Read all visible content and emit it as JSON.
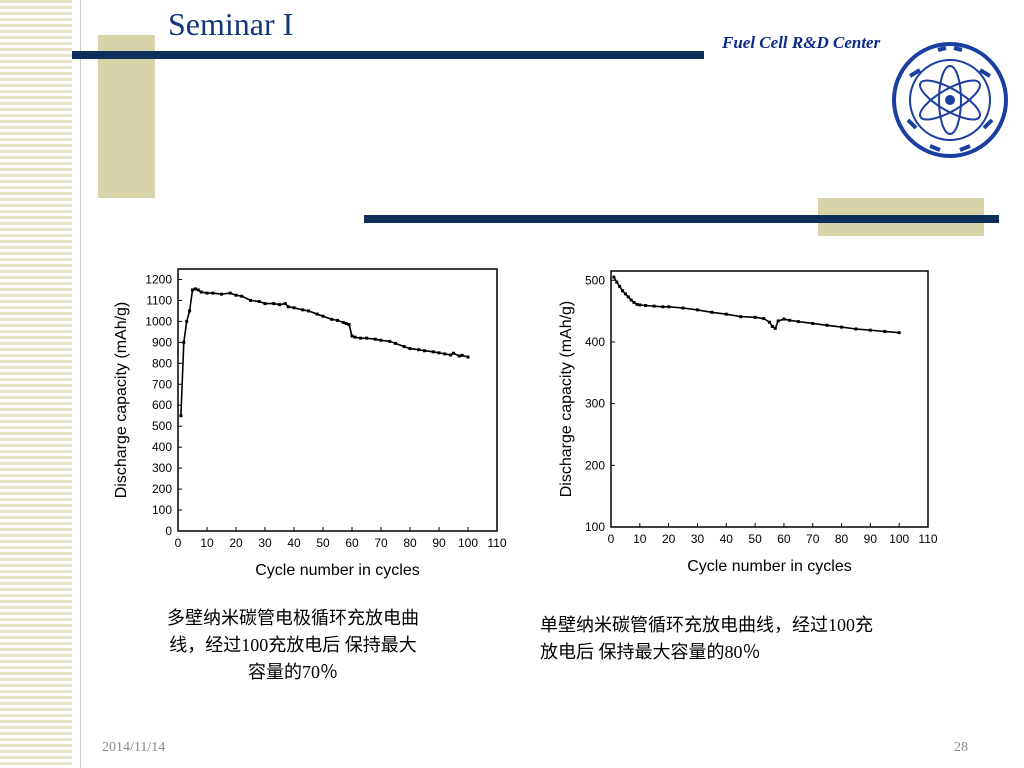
{
  "slide": {
    "title": "Seminar I",
    "center_name": "Fuel Cell R&D Center",
    "date": "2014/11/14",
    "page_number": "28"
  },
  "captions": {
    "left_lines": [
      "多壁纳米碳管电极循环充放电曲",
      "线，经过100充放电后  保持最大",
      "容量的70％"
    ],
    "right_lines": [
      "单壁纳米碳管循环充放电曲线，经过100充",
      "放电后 保持最大容量的80％"
    ]
  },
  "chart_data": [
    {
      "type": "line",
      "xlabel": "Cycle number in cycles",
      "ylabel": "Discharge capacity (mAh/g)",
      "xlim": [
        0,
        110
      ],
      "ylim": [
        0,
        1250
      ],
      "xticks": [
        0,
        10,
        20,
        30,
        40,
        50,
        60,
        70,
        80,
        90,
        100,
        110
      ],
      "yticks": [
        0,
        100,
        200,
        300,
        400,
        500,
        600,
        700,
        800,
        900,
        1000,
        1100,
        1200
      ],
      "series": [
        {
          "x": [
            1,
            2,
            3,
            4,
            5,
            6,
            7,
            8,
            10,
            12,
            15,
            18,
            20,
            22,
            25,
            28,
            30,
            33,
            35,
            37,
            38,
            40,
            43,
            45,
            48,
            50,
            53,
            55,
            57,
            58,
            59,
            60,
            61,
            63,
            65,
            68,
            70,
            73,
            75,
            78,
            80,
            83,
            85,
            88,
            90,
            92,
            94,
            95,
            97,
            98,
            100
          ],
          "y": [
            550,
            900,
            1000,
            1050,
            1150,
            1155,
            1150,
            1140,
            1135,
            1135,
            1130,
            1135,
            1125,
            1120,
            1100,
            1095,
            1085,
            1085,
            1080,
            1085,
            1070,
            1065,
            1055,
            1050,
            1035,
            1025,
            1010,
            1005,
            995,
            990,
            985,
            930,
            925,
            920,
            920,
            915,
            910,
            905,
            895,
            880,
            870,
            865,
            860,
            855,
            850,
            845,
            840,
            848,
            835,
            838,
            830
          ]
        }
      ]
    },
    {
      "type": "line",
      "xlabel": "Cycle number in cycles",
      "ylabel": "Discharge capacity (mAh/g)",
      "xlim": [
        0,
        110
      ],
      "ylim": [
        100,
        515
      ],
      "xticks": [
        0,
        10,
        20,
        30,
        40,
        50,
        60,
        70,
        80,
        90,
        100,
        110
      ],
      "yticks": [
        100,
        200,
        300,
        400,
        500
      ],
      "series": [
        {
          "x": [
            1,
            2,
            3,
            4,
            5,
            6,
            7,
            8,
            9,
            10,
            12,
            15,
            18,
            20,
            25,
            30,
            35,
            40,
            45,
            50,
            53,
            55,
            56,
            57,
            58,
            60,
            62,
            65,
            70,
            75,
            80,
            85,
            90,
            95,
            100
          ],
          "y": [
            505,
            497,
            490,
            483,
            478,
            473,
            468,
            464,
            461,
            460,
            459,
            458,
            457,
            457,
            455,
            452,
            448,
            445,
            441,
            440,
            438,
            432,
            425,
            422,
            434,
            437,
            435,
            433,
            430,
            427,
            424,
            421,
            419,
            417,
            415
          ]
        }
      ]
    }
  ]
}
